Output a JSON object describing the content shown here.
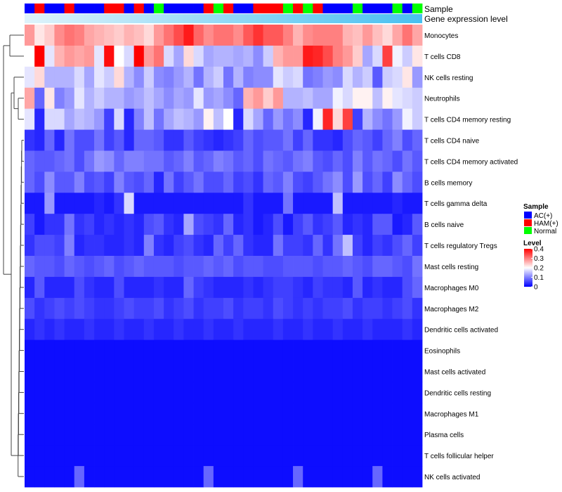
{
  "chart_data": {
    "type": "heatmap",
    "title": "",
    "annotation_tracks": [
      "Sample",
      "Gene expression level"
    ],
    "rows": [
      "Monocytes",
      "T cells CD8",
      "NK cells resting",
      "Neutrophils",
      "T cells CD4 memory resting",
      "T cells CD4 naive",
      "T cells CD4 memory activated",
      "B cells memory",
      "T cells gamma delta",
      "B cells naive",
      "T cells regulatory  Tregs",
      "Mast cells resting",
      "Macrophages M0",
      "Macrophages M2",
      "Dendritic cells activated",
      "Eosinophils",
      "Mast cells activated",
      "Dendritic cells resting",
      "Macrophages M1",
      "Plasma cells",
      "T cells follicular helper",
      "NK cells activated"
    ],
    "sample_groups": [
      "AC",
      "HAM",
      "AC",
      "AC",
      "HAM",
      "AC",
      "AC",
      "AC",
      "HAM",
      "HAM",
      "AC",
      "HAM",
      "AC",
      "Normal",
      "AC",
      "AC",
      "AC",
      "AC",
      "HAM",
      "Normal",
      "HAM",
      "AC",
      "AC",
      "HAM",
      "HAM",
      "HAM",
      "Normal",
      "HAM",
      "Normal",
      "HAM",
      "AC",
      "AC",
      "AC",
      "Normal",
      "AC",
      "AC",
      "AC",
      "Normal",
      "AC",
      "Normal"
    ],
    "values": [
      [
        0.28,
        0.22,
        0.24,
        0.29,
        0.31,
        0.3,
        0.27,
        0.26,
        0.25,
        0.24,
        0.26,
        0.25,
        0.23,
        0.28,
        0.31,
        0.34,
        0.38,
        0.32,
        0.29,
        0.31,
        0.31,
        0.29,
        0.33,
        0.36,
        0.33,
        0.33,
        0.3,
        0.26,
        0.29,
        0.3,
        0.3,
        0.3,
        0.26,
        0.25,
        0.28,
        0.25,
        0.23,
        0.27,
        0.31,
        0.27
      ],
      [
        0.2,
        0.4,
        0.18,
        0.26,
        0.28,
        0.27,
        0.28,
        0.18,
        0.39,
        0.2,
        0.17,
        0.4,
        0.28,
        0.31,
        0.17,
        0.13,
        0.23,
        0.17,
        0.13,
        0.14,
        0.14,
        0.13,
        0.14,
        0.11,
        0.16,
        0.26,
        0.28,
        0.28,
        0.38,
        0.37,
        0.34,
        0.3,
        0.28,
        0.24,
        0.13,
        0.17,
        0.35,
        0.19,
        0.16,
        0.22
      ],
      [
        0.18,
        0.23,
        0.14,
        0.14,
        0.14,
        0.17,
        0.13,
        0.18,
        0.16,
        0.23,
        0.14,
        0.11,
        0.16,
        0.11,
        0.1,
        0.12,
        0.14,
        0.09,
        0.14,
        0.16,
        0.09,
        0.14,
        0.1,
        0.11,
        0.11,
        0.18,
        0.16,
        0.17,
        0.09,
        0.1,
        0.12,
        0.11,
        0.17,
        0.14,
        0.16,
        0.07,
        0.16,
        0.17,
        0.22,
        0.12
      ],
      [
        0.27,
        0.08,
        0.22,
        0.1,
        0.12,
        0.18,
        0.14,
        0.16,
        0.14,
        0.14,
        0.12,
        0.13,
        0.15,
        0.13,
        0.11,
        0.13,
        0.12,
        0.18,
        0.12,
        0.13,
        0.11,
        0.08,
        0.26,
        0.28,
        0.24,
        0.28,
        0.14,
        0.14,
        0.15,
        0.13,
        0.13,
        0.19,
        0.17,
        0.21,
        0.21,
        0.15,
        0.21,
        0.18,
        0.17,
        0.16
      ],
      [
        0.18,
        0.03,
        0.17,
        0.17,
        0.13,
        0.15,
        0.14,
        0.12,
        0.05,
        0.17,
        0.03,
        0.1,
        0.15,
        0.09,
        0.13,
        0.15,
        0.14,
        0.12,
        0.21,
        0.15,
        0.2,
        0.03,
        0.17,
        0.13,
        0.08,
        0.12,
        0.09,
        0.11,
        0.03,
        0.19,
        0.37,
        0.23,
        0.35,
        0.05,
        0.14,
        0.11,
        0.09,
        0.12,
        0.19,
        0.16
      ],
      [
        0.04,
        0.03,
        0.08,
        0.03,
        0.09,
        0.06,
        0.06,
        0.09,
        0.05,
        0.07,
        0.03,
        0.08,
        0.08,
        0.07,
        0.04,
        0.04,
        0.07,
        0.05,
        0.04,
        0.03,
        0.04,
        0.05,
        0.08,
        0.06,
        0.07,
        0.07,
        0.09,
        0.05,
        0.08,
        0.04,
        0.04,
        0.03,
        0.06,
        0.08,
        0.07,
        0.05,
        0.08,
        0.1,
        0.06,
        0.08
      ],
      [
        0.08,
        0.07,
        0.07,
        0.08,
        0.09,
        0.06,
        0.09,
        0.12,
        0.11,
        0.08,
        0.1,
        0.1,
        0.09,
        0.09,
        0.07,
        0.08,
        0.1,
        0.07,
        0.08,
        0.1,
        0.09,
        0.07,
        0.08,
        0.06,
        0.09,
        0.08,
        0.07,
        0.09,
        0.1,
        0.07,
        0.06,
        0.08,
        0.06,
        0.1,
        0.07,
        0.09,
        0.08,
        0.06,
        0.09,
        0.07
      ],
      [
        0.08,
        0.06,
        0.11,
        0.07,
        0.07,
        0.1,
        0.06,
        0.07,
        0.05,
        0.1,
        0.07,
        0.06,
        0.08,
        0.03,
        0.09,
        0.05,
        0.07,
        0.09,
        0.06,
        0.06,
        0.08,
        0.05,
        0.06,
        0.04,
        0.08,
        0.07,
        0.1,
        0.06,
        0.05,
        0.07,
        0.09,
        0.11,
        0.06,
        0.12,
        0.06,
        0.08,
        0.05,
        0.11,
        0.08,
        0.06
      ],
      [
        0.02,
        0.02,
        0.12,
        0.02,
        0.02,
        0.02,
        0.02,
        0.03,
        0.02,
        0.04,
        0.17,
        0.02,
        0.02,
        0.02,
        0.02,
        0.02,
        0.02,
        0.02,
        0.02,
        0.02,
        0.02,
        0.02,
        0.04,
        0.02,
        0.02,
        0.02,
        0.09,
        0.02,
        0.02,
        0.02,
        0.02,
        0.15,
        0.02,
        0.02,
        0.02,
        0.02,
        0.02,
        0.03,
        0.02,
        0.02
      ],
      [
        0.05,
        0.02,
        0.04,
        0.04,
        0.09,
        0.04,
        0.05,
        0.03,
        0.04,
        0.03,
        0.04,
        0.03,
        0.06,
        0.07,
        0.04,
        0.03,
        0.13,
        0.06,
        0.05,
        0.04,
        0.08,
        0.03,
        0.04,
        0.02,
        0.03,
        0.06,
        0.02,
        0.05,
        0.07,
        0.04,
        0.05,
        0.07,
        0.03,
        0.04,
        0.03,
        0.07,
        0.07,
        0.02,
        0.03,
        0.07
      ],
      [
        0.04,
        0.06,
        0.06,
        0.05,
        0.1,
        0.03,
        0.04,
        0.04,
        0.03,
        0.03,
        0.04,
        0.03,
        0.1,
        0.04,
        0.03,
        0.05,
        0.06,
        0.04,
        0.03,
        0.08,
        0.05,
        0.08,
        0.04,
        0.03,
        0.03,
        0.09,
        0.05,
        0.05,
        0.04,
        0.08,
        0.04,
        0.09,
        0.15,
        0.05,
        0.03,
        0.05,
        0.04,
        0.06,
        0.08,
        0.05
      ],
      [
        0.08,
        0.07,
        0.07,
        0.06,
        0.08,
        0.07,
        0.06,
        0.07,
        0.08,
        0.06,
        0.07,
        0.08,
        0.07,
        0.07,
        0.07,
        0.06,
        0.07,
        0.07,
        0.08,
        0.07,
        0.08,
        0.06,
        0.07,
        0.07,
        0.06,
        0.06,
        0.07,
        0.07,
        0.07,
        0.06,
        0.07,
        0.07,
        0.08,
        0.07,
        0.06,
        0.08,
        0.08,
        0.07,
        0.06,
        0.09
      ],
      [
        0.03,
        0.07,
        0.03,
        0.03,
        0.03,
        0.06,
        0.04,
        0.03,
        0.03,
        0.06,
        0.03,
        0.03,
        0.03,
        0.04,
        0.03,
        0.03,
        0.08,
        0.05,
        0.04,
        0.03,
        0.03,
        0.03,
        0.04,
        0.03,
        0.04,
        0.05,
        0.05,
        0.04,
        0.03,
        0.05,
        0.04,
        0.04,
        0.03,
        0.07,
        0.03,
        0.04,
        0.03,
        0.03,
        0.06,
        0.08
      ],
      [
        0.06,
        0.04,
        0.05,
        0.06,
        0.05,
        0.06,
        0.05,
        0.04,
        0.04,
        0.05,
        0.06,
        0.05,
        0.05,
        0.06,
        0.04,
        0.05,
        0.06,
        0.04,
        0.05,
        0.05,
        0.06,
        0.04,
        0.05,
        0.05,
        0.04,
        0.06,
        0.05,
        0.04,
        0.05,
        0.04,
        0.05,
        0.05,
        0.06,
        0.04,
        0.05,
        0.05,
        0.04,
        0.05,
        0.06,
        0.04
      ],
      [
        0.03,
        0.04,
        0.03,
        0.04,
        0.03,
        0.03,
        0.04,
        0.03,
        0.03,
        0.04,
        0.03,
        0.03,
        0.04,
        0.03,
        0.03,
        0.04,
        0.03,
        0.03,
        0.04,
        0.03,
        0.03,
        0.04,
        0.03,
        0.03,
        0.03,
        0.04,
        0.03,
        0.03,
        0.04,
        0.03,
        0.03,
        0.04,
        0.03,
        0.03,
        0.04,
        0.03,
        0.03,
        0.03,
        0.04,
        0.03
      ],
      [
        0.01,
        0.01,
        0.01,
        0.01,
        0.01,
        0.01,
        0.01,
        0.01,
        0.01,
        0.01,
        0.01,
        0.01,
        0.01,
        0.01,
        0.01,
        0.01,
        0.01,
        0.01,
        0.01,
        0.01,
        0.01,
        0.01,
        0.01,
        0.01,
        0.01,
        0.01,
        0.01,
        0.01,
        0.01,
        0.01,
        0.01,
        0.01,
        0.01,
        0.01,
        0.01,
        0.01,
        0.01,
        0.01,
        0.01,
        0.01
      ],
      [
        0.01,
        0.01,
        0.01,
        0.01,
        0.01,
        0.01,
        0.01,
        0.01,
        0.01,
        0.01,
        0.01,
        0.01,
        0.01,
        0.01,
        0.01,
        0.01,
        0.01,
        0.01,
        0.01,
        0.01,
        0.01,
        0.01,
        0.01,
        0.01,
        0.01,
        0.01,
        0.01,
        0.01,
        0.01,
        0.01,
        0.01,
        0.01,
        0.01,
        0.01,
        0.01,
        0.01,
        0.01,
        0.01,
        0.01,
        0.01
      ],
      [
        0.01,
        0.01,
        0.01,
        0.01,
        0.01,
        0.01,
        0.01,
        0.01,
        0.01,
        0.01,
        0.01,
        0.01,
        0.01,
        0.01,
        0.01,
        0.01,
        0.01,
        0.01,
        0.01,
        0.01,
        0.01,
        0.01,
        0.01,
        0.01,
        0.01,
        0.01,
        0.01,
        0.01,
        0.01,
        0.01,
        0.01,
        0.01,
        0.01,
        0.01,
        0.01,
        0.01,
        0.01,
        0.01,
        0.01,
        0.01
      ],
      [
        0.01,
        0.01,
        0.01,
        0.01,
        0.01,
        0.01,
        0.01,
        0.01,
        0.01,
        0.01,
        0.01,
        0.01,
        0.01,
        0.01,
        0.01,
        0.01,
        0.01,
        0.01,
        0.01,
        0.01,
        0.01,
        0.01,
        0.01,
        0.01,
        0.01,
        0.01,
        0.01,
        0.01,
        0.01,
        0.01,
        0.01,
        0.01,
        0.01,
        0.01,
        0.01,
        0.01,
        0.01,
        0.01,
        0.01,
        0.01
      ],
      [
        0.01,
        0.01,
        0.01,
        0.01,
        0.01,
        0.01,
        0.01,
        0.01,
        0.01,
        0.01,
        0.01,
        0.01,
        0.01,
        0.01,
        0.01,
        0.01,
        0.01,
        0.01,
        0.01,
        0.01,
        0.01,
        0.01,
        0.01,
        0.01,
        0.01,
        0.01,
        0.01,
        0.01,
        0.01,
        0.01,
        0.01,
        0.01,
        0.01,
        0.01,
        0.01,
        0.01,
        0.01,
        0.01,
        0.01,
        0.01
      ],
      [
        0.01,
        0.01,
        0.01,
        0.01,
        0.01,
        0.01,
        0.01,
        0.01,
        0.01,
        0.01,
        0.01,
        0.01,
        0.01,
        0.01,
        0.01,
        0.01,
        0.01,
        0.01,
        0.01,
        0.01,
        0.01,
        0.01,
        0.01,
        0.01,
        0.01,
        0.01,
        0.01,
        0.01,
        0.01,
        0.01,
        0.01,
        0.01,
        0.01,
        0.01,
        0.01,
        0.01,
        0.01,
        0.01,
        0.01,
        0.01
      ],
      [
        0.01,
        0.01,
        0.01,
        0.01,
        0.01,
        0.08,
        0.01,
        0.01,
        0.01,
        0.01,
        0.01,
        0.01,
        0.01,
        0.01,
        0.01,
        0.01,
        0.01,
        0.01,
        0.08,
        0.01,
        0.01,
        0.01,
        0.01,
        0.01,
        0.01,
        0.01,
        0.01,
        0.08,
        0.01,
        0.01,
        0.01,
        0.01,
        0.01,
        0.01,
        0.01,
        0.08,
        0.01,
        0.01,
        0.01,
        0.01
      ]
    ],
    "gradient_track": "increasing",
    "legend": {
      "sample_title": "Sample",
      "sample_entries": [
        {
          "label": "AC(+)",
          "color": "#0000ff"
        },
        {
          "label": "HAM(+)",
          "color": "#ff0000"
        },
        {
          "label": "Normal",
          "color": "#00ff00"
        }
      ],
      "level_title": "Level",
      "level_ticks": [
        "0.4",
        "0.3",
        "0.2",
        "0.1",
        "0"
      ],
      "level_tick_values": [
        0.4,
        0.3,
        0.2,
        0.1,
        0
      ],
      "color_low": "#0000ff",
      "color_mid": "#ffffff",
      "color_high": "#ff0000",
      "range": [
        0,
        0.4
      ],
      "position": "right"
    },
    "gradient_colors": [
      "#dff3fb",
      "#48c0f0"
    ],
    "row_dendrogram": "left",
    "column_dendrogram": "none"
  }
}
